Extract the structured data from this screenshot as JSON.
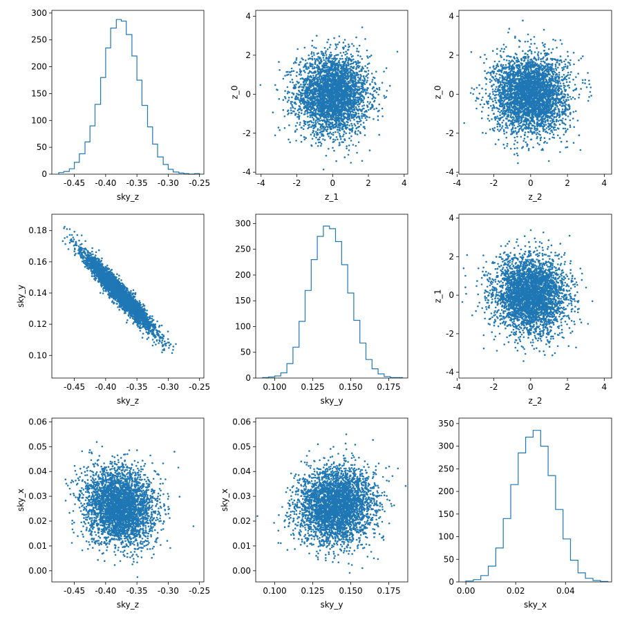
{
  "colors": {
    "accent": "#1f77b4",
    "axis": "#000000",
    "background": "#ffffff"
  },
  "chart_data": [
    {
      "type": "histogram",
      "xlabel": "sky_z",
      "ylabel": "",
      "xlim": [
        -0.486,
        -0.243
      ],
      "ylim": [
        0,
        305
      ],
      "xticks": [
        "-0.45",
        "-0.40",
        "-0.35",
        "-0.30",
        "-0.25"
      ],
      "yticks": [
        "0",
        "50",
        "100",
        "150",
        "200",
        "250",
        "300"
      ],
      "bins": [
        -0.475,
        -0.467,
        -0.458,
        -0.45,
        -0.442,
        -0.433,
        -0.425,
        -0.417,
        -0.408,
        -0.4,
        -0.392,
        -0.383,
        -0.375,
        -0.367,
        -0.358,
        -0.35,
        -0.342,
        -0.333,
        -0.325,
        -0.317,
        -0.308,
        -0.3,
        -0.292,
        -0.283,
        -0.275,
        -0.267,
        -0.258,
        -0.25
      ],
      "counts": [
        3,
        5,
        10,
        22,
        38,
        60,
        90,
        130,
        180,
        235,
        272,
        288,
        285,
        260,
        220,
        175,
        128,
        88,
        56,
        32,
        18,
        9,
        4,
        2,
        1,
        0,
        1
      ]
    },
    {
      "type": "scatter",
      "xlabel": "z_1",
      "ylabel": "z_0",
      "xlim": [
        -4.3,
        4.2
      ],
      "ylim": [
        -4.1,
        4.3
      ],
      "xticks": [
        "-4",
        "-2",
        "0",
        "2",
        "4"
      ],
      "yticks": [
        "-4",
        "-2",
        "0",
        "2",
        "4"
      ],
      "distribution": {
        "x_mean": 0.0,
        "x_sd": 1.0,
        "y_mean": 0.0,
        "y_sd": 1.0,
        "corr": 0.0,
        "n": 10000
      }
    },
    {
      "type": "scatter",
      "xlabel": "z_2",
      "ylabel": "z_0",
      "xlim": [
        -3.9,
        4.4
      ],
      "ylim": [
        -4.1,
        4.3
      ],
      "xticks": [
        "-4",
        "-2",
        "0",
        "2",
        "4"
      ],
      "yticks": [
        "-4",
        "-2",
        "0",
        "2",
        "4"
      ],
      "distribution": {
        "x_mean": 0.0,
        "x_sd": 1.0,
        "y_mean": 0.0,
        "y_sd": 1.0,
        "corr": 0.0,
        "n": 10000
      }
    },
    {
      "type": "scatter",
      "xlabel": "sky_z",
      "ylabel": "sky_y",
      "xlim": [
        -0.486,
        -0.243
      ],
      "ylim": [
        0.0855,
        0.1905
      ],
      "xticks": [
        "-0.45",
        "-0.40",
        "-0.35",
        "-0.30",
        "-0.25"
      ],
      "yticks": [
        "0.10",
        "0.12",
        "0.14",
        "0.16",
        "0.18"
      ],
      "distribution": {
        "x_mean": -0.378,
        "x_sd": 0.028,
        "y_mean": 0.14,
        "y_sd": 0.0125,
        "corr": -0.96,
        "n": 10000
      }
    },
    {
      "type": "histogram",
      "xlabel": "sky_y",
      "ylabel": "",
      "xlim": [
        0.0875,
        0.1875
      ],
      "ylim": [
        0,
        318
      ],
      "xticks": [
        "0.100",
        "0.125",
        "0.150",
        "0.175"
      ],
      "yticks": [
        "0",
        "50",
        "100",
        "150",
        "200",
        "250",
        "300"
      ],
      "bins": [
        0.092,
        0.096,
        0.1,
        0.104,
        0.108,
        0.112,
        0.116,
        0.12,
        0.124,
        0.128,
        0.132,
        0.136,
        0.14,
        0.144,
        0.148,
        0.152,
        0.156,
        0.16,
        0.164,
        0.168,
        0.172,
        0.176,
        0.18,
        0.184
      ],
      "counts": [
        1,
        2,
        4,
        10,
        28,
        60,
        110,
        170,
        230,
        275,
        295,
        290,
        265,
        220,
        165,
        112,
        68,
        36,
        18,
        8,
        3,
        1,
        1
      ]
    },
    {
      "type": "scatter",
      "xlabel": "z_2",
      "ylabel": "z_1",
      "xlim": [
        -3.9,
        4.4
      ],
      "ylim": [
        -4.3,
        4.2
      ],
      "xticks": [
        "-4",
        "-2",
        "0",
        "2",
        "4"
      ],
      "yticks": [
        "-4",
        "-2",
        "0",
        "2",
        "4"
      ],
      "distribution": {
        "x_mean": 0.0,
        "x_sd": 1.0,
        "y_mean": 0.0,
        "y_sd": 1.0,
        "corr": 0.0,
        "n": 10000
      }
    },
    {
      "type": "scatter",
      "xlabel": "sky_z",
      "ylabel": "sky_x",
      "xlim": [
        -0.486,
        -0.243
      ],
      "ylim": [
        -0.0045,
        0.0615
      ],
      "xticks": [
        "-0.45",
        "-0.40",
        "-0.35",
        "-0.30",
        "-0.25"
      ],
      "yticks": [
        "0.00",
        "0.01",
        "0.02",
        "0.03",
        "0.04",
        "0.05",
        "0.06"
      ],
      "distribution": {
        "x_mean": -0.378,
        "x_sd": 0.028,
        "y_mean": 0.026,
        "y_sd": 0.0077,
        "corr": -0.1,
        "n": 10000
      }
    },
    {
      "type": "scatter",
      "xlabel": "sky_y",
      "ylabel": "sky_x",
      "xlim": [
        0.0875,
        0.1875
      ],
      "ylim": [
        -0.0045,
        0.0615
      ],
      "xticks": [
        "0.100",
        "0.125",
        "0.150",
        "0.175"
      ],
      "yticks": [
        "0.00",
        "0.01",
        "0.02",
        "0.03",
        "0.04",
        "0.05",
        "0.06"
      ],
      "distribution": {
        "x_mean": 0.14,
        "x_sd": 0.0125,
        "y_mean": 0.026,
        "y_sd": 0.0077,
        "corr": 0.05,
        "n": 10000
      }
    },
    {
      "type": "histogram",
      "xlabel": "sky_x",
      "ylabel": "",
      "xlim": [
        -0.0028,
        0.0585
      ],
      "ylim": [
        0,
        362
      ],
      "xticks": [
        "0.00",
        "0.02",
        "0.04"
      ],
      "yticks": [
        "0",
        "50",
        "100",
        "150",
        "200",
        "250",
        "300",
        "350"
      ],
      "bins": [
        0.0,
        0.003,
        0.006,
        0.009,
        0.012,
        0.015,
        0.018,
        0.021,
        0.024,
        0.027,
        0.03,
        0.033,
        0.036,
        0.039,
        0.042,
        0.045,
        0.048,
        0.051,
        0.054,
        0.057
      ],
      "counts": [
        2,
        5,
        14,
        35,
        75,
        140,
        215,
        285,
        320,
        335,
        300,
        235,
        160,
        95,
        48,
        20,
        8,
        3,
        1
      ]
    }
  ]
}
